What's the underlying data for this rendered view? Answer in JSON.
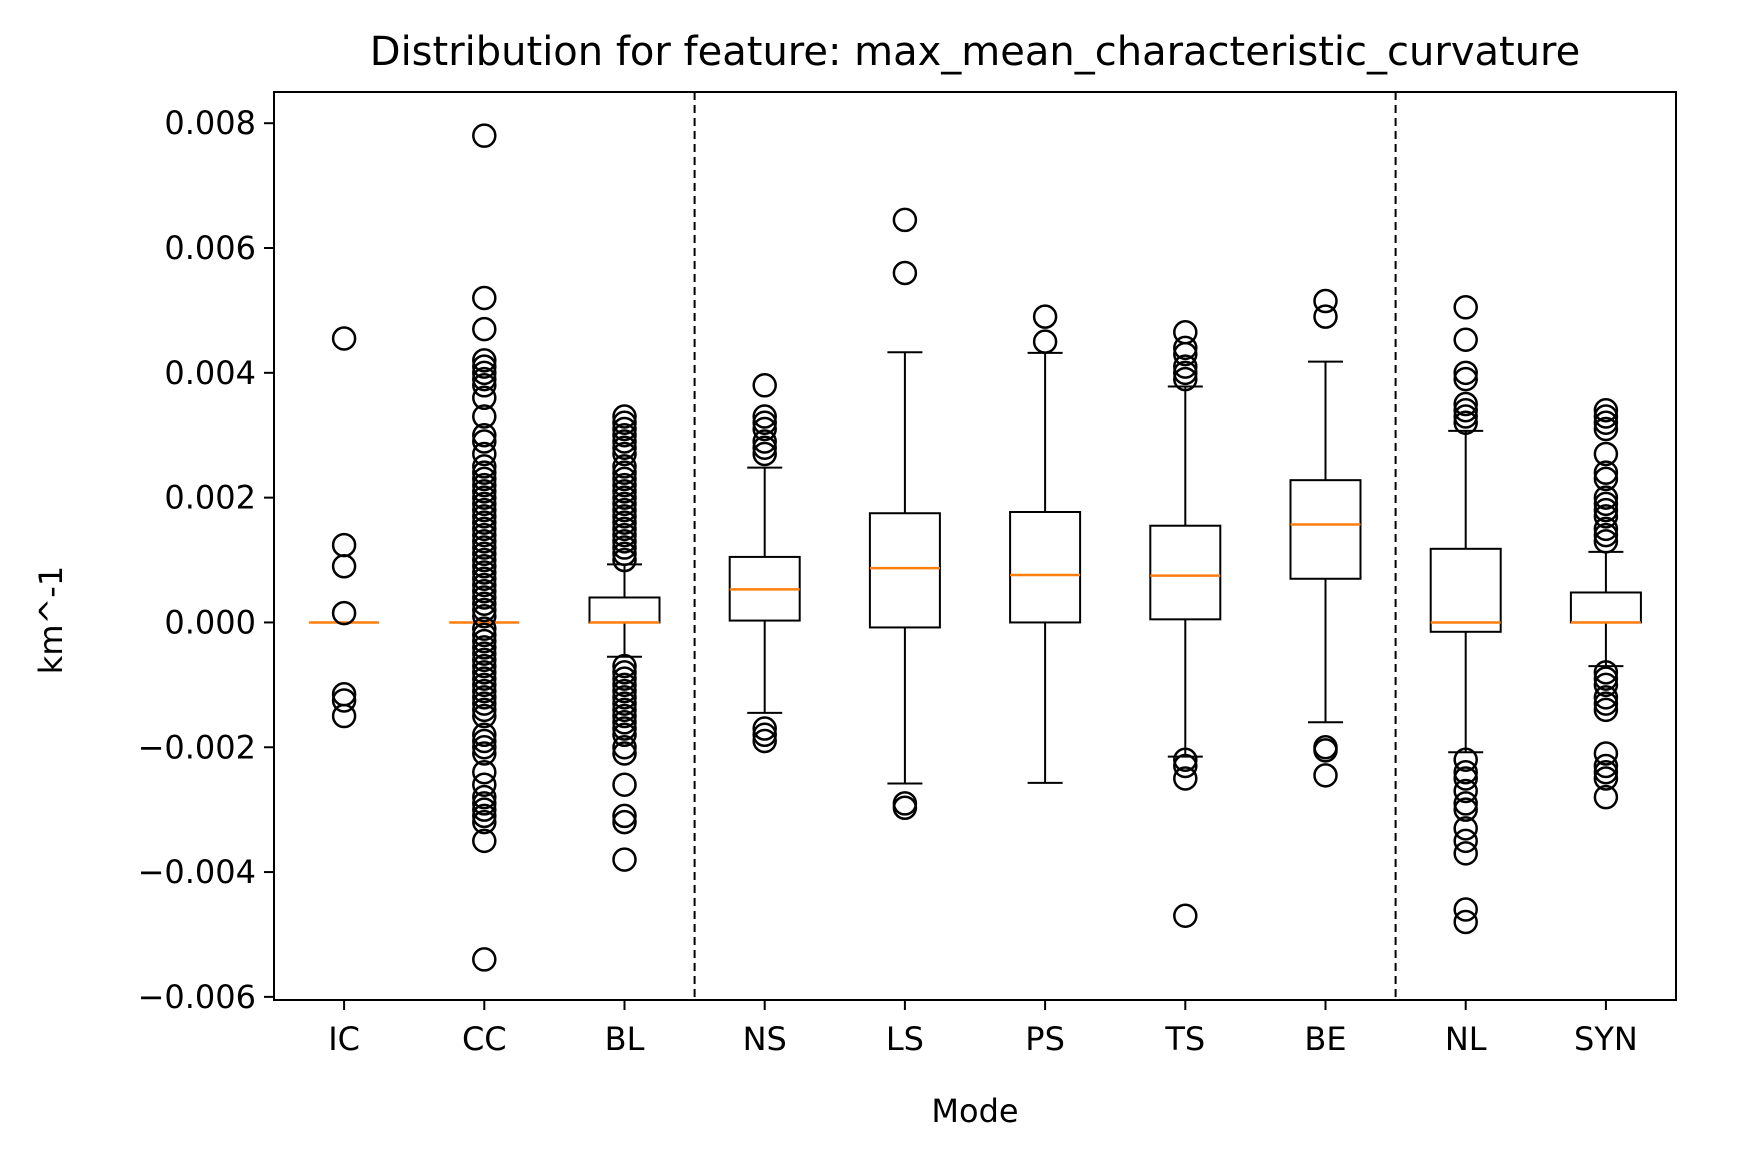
{
  "chart_data": {
    "type": "box",
    "title": "Distribution for feature: max_mean_characteristic_curvature",
    "xlabel": "Mode",
    "ylabel": "km^-1",
    "ylim": [
      -0.00605,
      0.0085
    ],
    "yticks": [
      "0.008",
      "0.006",
      "0.004",
      "0.002",
      "0.000",
      "−0.002",
      "−0.004",
      "−0.006"
    ],
    "ytick_values": [
      0.008,
      0.006,
      0.004,
      0.002,
      0.0,
      -0.002,
      -0.004,
      -0.006
    ],
    "grid": false,
    "separators_after_category_index": [
      2,
      7
    ],
    "colors": {
      "box": "#000000",
      "median": "#ff7f0e",
      "flier": "#000000",
      "separator": "#000000"
    },
    "categories": [
      "IC",
      "CC",
      "BL",
      "NS",
      "LS",
      "PS",
      "TS",
      "BE",
      "NL",
      "SYN"
    ],
    "boxes": [
      {
        "label": "IC",
        "q1": 0.0,
        "median": 0.0,
        "q3": 0.0,
        "whisker_low": 0.0,
        "whisker_high": 0.0,
        "fliers": [
          0.00455,
          0.00124,
          0.0009,
          0.00015,
          -0.00115,
          -0.00125,
          -0.0015
        ]
      },
      {
        "label": "CC",
        "q1": 0.0,
        "median": 0.0,
        "q3": 0.0,
        "whisker_low": 0.0,
        "whisker_high": 0.0,
        "fliers": [
          0.0078,
          0.0052,
          0.0047,
          0.0042,
          0.0041,
          0.004,
          0.0039,
          0.0038,
          0.0036,
          0.0033,
          0.003,
          0.0029,
          0.0027,
          0.0025,
          0.0024,
          0.0023,
          0.0022,
          0.0021,
          0.002,
          0.0019,
          0.0018,
          0.0017,
          0.0016,
          0.0015,
          0.0014,
          0.0013,
          0.0012,
          0.0011,
          0.001,
          0.0009,
          0.0008,
          0.0007,
          0.0006,
          0.0005,
          0.0004,
          0.0003,
          0.0002,
          0.0001,
          -0.0001,
          -0.0002,
          -0.0003,
          -0.0004,
          -0.0005,
          -0.0006,
          -0.0007,
          -0.0008,
          -0.0009,
          -0.001,
          -0.0011,
          -0.0012,
          -0.0013,
          -0.0014,
          -0.0015,
          -0.0018,
          -0.0019,
          -0.002,
          -0.0021,
          -0.0024,
          -0.0026,
          -0.0028,
          -0.0029,
          -0.003,
          -0.0031,
          -0.0032,
          -0.0035,
          -0.0054
        ]
      },
      {
        "label": "BL",
        "q1": 0.0,
        "median": 0.0,
        "q3": 0.0004,
        "whisker_low": -0.00055,
        "whisker_high": 0.00093,
        "fliers": [
          0.0033,
          0.0032,
          0.0031,
          0.003,
          0.0029,
          0.0028,
          0.0027,
          0.0025,
          0.0024,
          0.0023,
          0.0022,
          0.0021,
          0.002,
          0.0019,
          0.0018,
          0.0017,
          0.0016,
          0.0015,
          0.0014,
          0.0013,
          0.0012,
          0.0011,
          0.001,
          -0.0007,
          -0.0008,
          -0.0009,
          -0.001,
          -0.0011,
          -0.0012,
          -0.0013,
          -0.0014,
          -0.0015,
          -0.0016,
          -0.0017,
          -0.0018,
          -0.002,
          -0.0021,
          -0.0026,
          -0.0031,
          -0.0032,
          -0.0038
        ]
      },
      {
        "label": "NS",
        "q1": 3e-05,
        "median": 0.00053,
        "q3": 0.00105,
        "whisker_low": -0.00145,
        "whisker_high": 0.00248,
        "fliers": [
          0.0038,
          0.0033,
          0.0032,
          0.0031,
          0.0029,
          0.0028,
          0.0027,
          -0.0017,
          -0.0018,
          -0.0019
        ]
      },
      {
        "label": "LS",
        "q1": -8e-05,
        "median": 0.00087,
        "q3": 0.00175,
        "whisker_low": -0.00258,
        "whisker_high": 0.00433,
        "fliers": [
          0.00645,
          0.0056,
          -0.0029,
          -0.00297
        ]
      },
      {
        "label": "PS",
        "q1": 0.0,
        "median": 0.00076,
        "q3": 0.00177,
        "whisker_low": -0.00257,
        "whisker_high": 0.00432,
        "fliers": [
          0.0049,
          0.0045
        ]
      },
      {
        "label": "TS",
        "q1": 5e-05,
        "median": 0.00075,
        "q3": 0.00155,
        "whisker_low": -0.00215,
        "whisker_high": 0.00378,
        "fliers": [
          0.00465,
          0.0044,
          0.0043,
          0.0041,
          0.004,
          0.0039,
          -0.0022,
          -0.0023,
          -0.0025,
          -0.0047
        ]
      },
      {
        "label": "BE",
        "q1": 0.0007,
        "median": 0.00157,
        "q3": 0.00228,
        "whisker_low": -0.0016,
        "whisker_high": 0.00418,
        "fliers": [
          0.00515,
          0.0049,
          -0.002,
          -0.00205,
          -0.00245
        ]
      },
      {
        "label": "NL",
        "q1": -0.00015,
        "median": 0.0,
        "q3": 0.00118,
        "whisker_low": -0.00208,
        "whisker_high": 0.00307,
        "fliers": [
          0.00505,
          0.00453,
          0.004,
          0.0039,
          0.0035,
          0.0034,
          0.0033,
          0.0032,
          -0.0022,
          -0.0024,
          -0.0025,
          -0.0027,
          -0.0029,
          -0.003,
          -0.0033,
          -0.0035,
          -0.0037,
          -0.0046,
          -0.0048
        ]
      },
      {
        "label": "SYN",
        "q1": 0.0,
        "median": 0.0,
        "q3": 0.00048,
        "whisker_low": -0.0007,
        "whisker_high": 0.00113,
        "fliers": [
          0.0034,
          0.0033,
          0.0032,
          0.0031,
          0.0027,
          0.0024,
          0.0023,
          0.002,
          0.0019,
          0.0018,
          0.0017,
          0.0015,
          0.0014,
          0.0013,
          -0.0008,
          -0.0009,
          -0.001,
          -0.0012,
          -0.0013,
          -0.0014,
          -0.0021,
          -0.0023,
          -0.0024,
          -0.0025,
          -0.0028
        ]
      }
    ]
  }
}
